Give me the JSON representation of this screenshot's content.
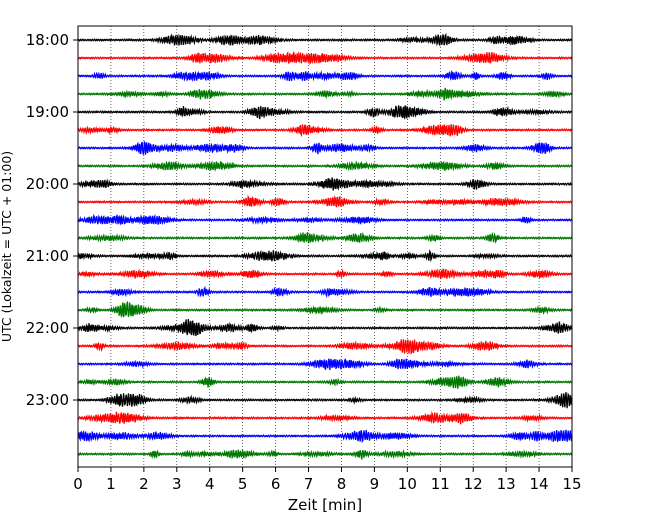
{
  "chart_data": {
    "type": "line",
    "title": "",
    "xlabel": "Zeit  [min]",
    "ylabel": "UTC (Lokalzeit = UTC + 01:00)",
    "xlim": [
      0,
      15
    ],
    "x_ticks": [
      "0",
      "1",
      "2",
      "3",
      "4",
      "5",
      "6",
      "7",
      "8",
      "9",
      "10",
      "11",
      "12",
      "13",
      "14",
      "15"
    ],
    "y_ticks": [
      "18:00",
      "19:00",
      "20:00",
      "21:00",
      "22:00",
      "23:00"
    ],
    "grid": "vertical dotted lines at each minute",
    "trace_start": "18:00",
    "trace_interval_min": 15,
    "trace_count": 24,
    "trace_colors": [
      "#000000",
      "#ff0000",
      "#0000ff",
      "#007700"
    ]
  }
}
